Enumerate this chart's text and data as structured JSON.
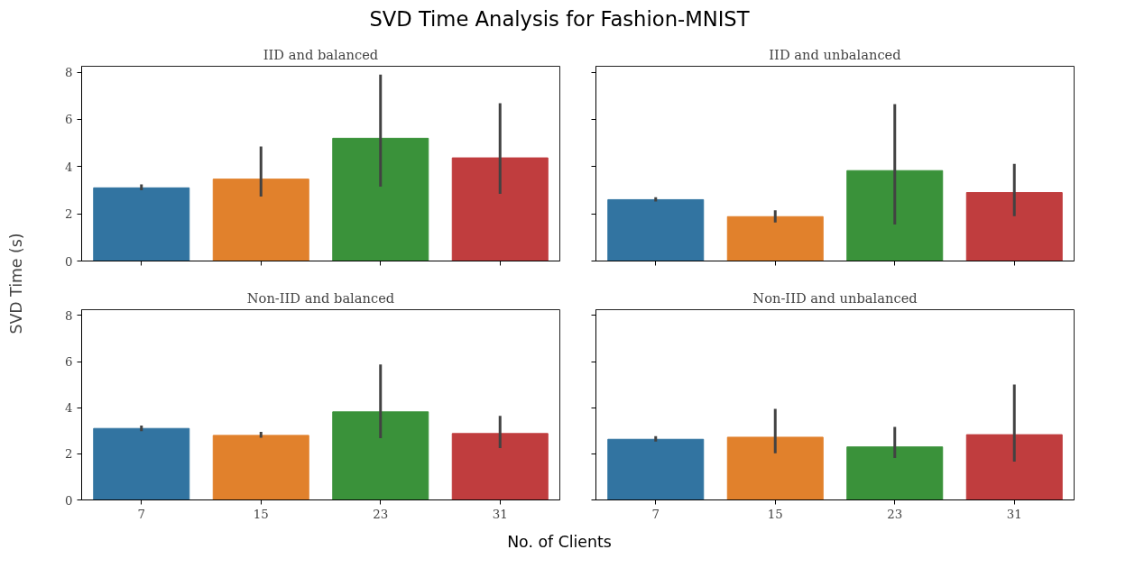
{
  "chart_data": [
    {
      "type": "bar",
      "title": "IID and balanced",
      "ylabel": "SVD Time (s)",
      "annotations": [
        "SVD Time Analysis for Fashion-MNIST"
      ],
      "categories": [
        "7",
        "15",
        "23",
        "31"
      ],
      "values": [
        3.1,
        3.47,
        5.2,
        4.37
      ],
      "colors": [
        "#3274a1",
        "#e1812c",
        "#3a923a",
        "#c03d3e"
      ],
      "errors": [
        [
          3.0,
          3.25
        ],
        [
          2.73,
          4.85
        ],
        [
          3.15,
          7.9
        ],
        [
          2.85,
          6.68
        ]
      ],
      "ylim": [
        0,
        8.25
      ],
      "yticks": [
        0,
        2,
        4,
        6,
        8
      ],
      "tick_labels": "y",
      "grid": false
    },
    {
      "type": "bar",
      "title": "IID and unbalanced",
      "categories": [
        "7",
        "15",
        "23",
        "31"
      ],
      "values": [
        2.6,
        1.88,
        3.83,
        2.9
      ],
      "colors": [
        "#3274a1",
        "#e1812c",
        "#3a923a",
        "#c03d3e"
      ],
      "errors": [
        [
          2.52,
          2.7
        ],
        [
          1.63,
          2.15
        ],
        [
          1.55,
          6.65
        ],
        [
          1.9,
          4.12
        ]
      ],
      "ylim": [
        0,
        8.25
      ],
      "yticks": [
        0,
        2,
        4,
        6,
        8
      ],
      "tick_labels": false,
      "grid": false
    },
    {
      "type": "bar",
      "title": "Non-IID and balanced",
      "xlabel": "No. of Clients",
      "categories": [
        "7",
        "15",
        "23",
        "31"
      ],
      "values": [
        3.1,
        2.8,
        3.82,
        2.88
      ],
      "colors": [
        "#3274a1",
        "#e1812c",
        "#3a923a",
        "#c03d3e"
      ],
      "errors": [
        [
          2.98,
          3.23
        ],
        [
          2.7,
          2.95
        ],
        [
          2.68,
          5.87
        ],
        [
          2.25,
          3.65
        ]
      ],
      "ylim": [
        0,
        8.25
      ],
      "yticks": [
        0,
        2,
        4,
        6,
        8
      ],
      "grid": false
    },
    {
      "type": "bar",
      "title": "Non-IID and unbalanced",
      "categories": [
        "7",
        "15",
        "23",
        "31"
      ],
      "values": [
        2.63,
        2.72,
        2.3,
        2.83
      ],
      "colors": [
        "#3274a1",
        "#e1812c",
        "#3a923a",
        "#c03d3e"
      ],
      "errors": [
        [
          2.53,
          2.77
        ],
        [
          2.02,
          3.95
        ],
        [
          1.82,
          3.17
        ],
        [
          1.66,
          5.0
        ]
      ],
      "ylim": [
        0,
        8.25
      ],
      "yticks": [
        0,
        2,
        4,
        6,
        8
      ],
      "tick_labels": "x",
      "grid": false
    }
  ]
}
